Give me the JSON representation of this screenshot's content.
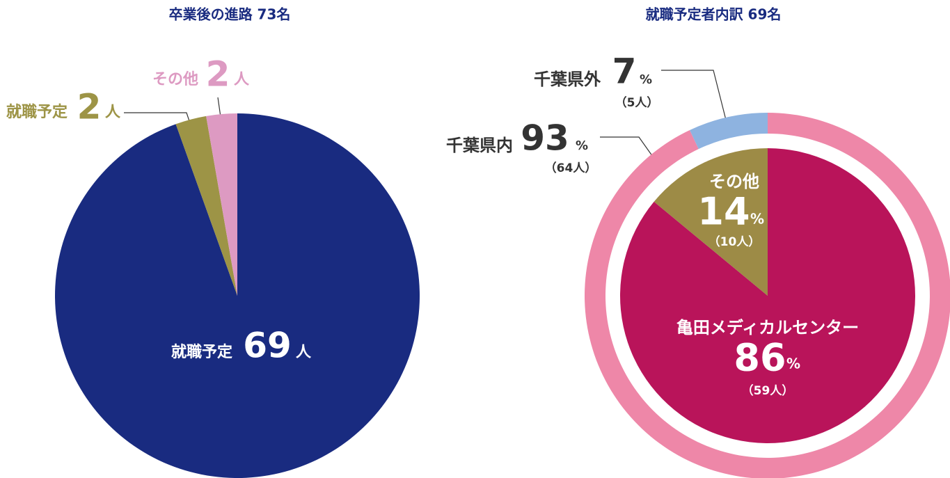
{
  "chart_data": [
    {
      "type": "pie",
      "title": "卒業後の進路 73名",
      "unit": "人",
      "categories": [
        "就職予定",
        "就職予定",
        "その他"
      ],
      "values": [
        69,
        2,
        2
      ],
      "colors": [
        "#192b80",
        "#9d9446",
        "#dd9ac2"
      ]
    },
    {
      "type": "nested-pie",
      "title": "就職予定者内訳 69名",
      "unit": "%",
      "outer": {
        "categories": [
          "千葉県内",
          "千葉県外"
        ],
        "values": [
          93,
          7
        ],
        "count_labels": [
          "（64人）",
          "（5人）"
        ],
        "colors": [
          "#ee87a8",
          "#8eb3e0"
        ]
      },
      "inner": {
        "categories": [
          "亀田メディカルセンター",
          "その他"
        ],
        "values": [
          86,
          14
        ],
        "count_labels": [
          "（59人）",
          "（10人）"
        ],
        "colors": [
          "#b9145a",
          "#9d8b46"
        ]
      }
    }
  ]
}
